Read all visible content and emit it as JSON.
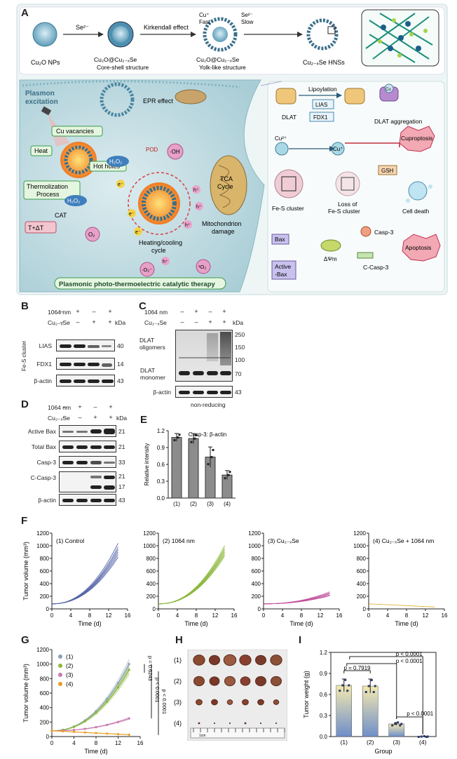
{
  "panels": [
    "A",
    "B",
    "C",
    "D",
    "E",
    "F",
    "G",
    "H",
    "I"
  ],
  "panelA": {
    "synth": {
      "s1": "Cu₂O NPs",
      "arrow1": "Se²⁻",
      "s2a": "Cu₂O@Cu₂₋ₓSe",
      "s2b": "Core-shell structure",
      "arrow2": "Kirkendall effect",
      "cuFast": "Cu⁺",
      "fast": "Fast",
      "seSlow": "Se²⁻",
      "slow": "Slow",
      "s3a": "Cu₂O@Cu₂₋ₓSe",
      "s3b": "Yolk-like structure",
      "s4": "Cu₂₋ₓSe HNSs"
    },
    "left": {
      "plasmon1": "Plasmon",
      "plasmon2": "excitation",
      "epr": "EPR effect",
      "cuvac": "Cu vacancies",
      "hotholes": "Hot holes",
      "heat": "Heat",
      "thermo1": "Thermolization",
      "thermo2": "Process",
      "h2o2a": "H₂O₂",
      "h2o2b": "H₂O₂",
      "oh": "·OH",
      "pod": "POD",
      "cat": "CAT",
      "o2": "O₂",
      "o2m": "·O₂⁻",
      "o2s": "¹O₂",
      "tca1": "TCA",
      "tca2": "Cycle",
      "mito1": "Mitochondrion",
      "mito2": "damage",
      "cycle1": "Heating/cooling",
      "cycle2": "cycle",
      "tdt": "T+ΔT",
      "banner": "Plasmonic photo-thermoelectric catalytic therapy",
      "e": "e⁻",
      "h": "h⁺"
    },
    "right": {
      "lipo": "Lipoylation",
      "dlat": "DLAT",
      "lias": "LIAS",
      "fdx1": "FDX1",
      "cu2": "Cu²⁺",
      "cu1": "Cu⁺",
      "gsh": "GSH",
      "agg": "DLAT aggregation",
      "cupro": "Cuproptosis",
      "fes": "Fe-S cluster",
      "loss1": "Loss of",
      "loss2": "Fe-S cluster",
      "death": "Cell death",
      "bax": "Bax",
      "abax1": "Active",
      "abax2": "-Bax",
      "dpsi": "ΔΨm",
      "casp3": "Casp-3",
      "ccasp3": "C-Casp-3",
      "apop": "Apoptosis",
      "cuLabel": "Cu"
    }
  },
  "blots": {
    "nm": "1064 nm",
    "cuse": "Cu₂₋ₓSe",
    "kda": "kDa",
    "plus": "+",
    "minus": "–",
    "treat1064": [
      "–",
      "+",
      "–",
      "+"
    ],
    "treatCuSe": [
      "–",
      "–",
      "+",
      "+"
    ],
    "B": {
      "rows": [
        "LIAS",
        "FDX1",
        "β-actin"
      ],
      "kda": [
        "40",
        "14",
        "43"
      ],
      "group": "Fe-S cluster"
    },
    "C": {
      "oligo": "DLAT oligomers",
      "mono1": "DLAT",
      "mono2": "monomer",
      "actin": "β-actin",
      "kda": [
        "250",
        "150",
        "100",
        "70",
        "43"
      ],
      "note": "non-reducing"
    },
    "D": {
      "rows": [
        "Active Bax",
        "Total Bax",
        "Casp-3",
        "C-Casp-3",
        "β-actin"
      ],
      "kda": [
        "21",
        "21",
        "33",
        "21",
        "17",
        "43"
      ]
    }
  },
  "chart_data": [
    {
      "panel": "E",
      "type": "bar",
      "title": "Casp-3: β-actin",
      "ylabel": "Relative intensity",
      "categories": [
        "(1)",
        "(2)",
        "(3)",
        "(4)"
      ],
      "values": [
        1.08,
        1.06,
        0.73,
        0.41
      ],
      "errors": [
        0.07,
        0.09,
        0.18,
        0.08
      ],
      "ylim": [
        0,
        1.2
      ],
      "yticks": [
        0.0,
        0.3,
        0.6,
        0.9,
        1.2
      ]
    },
    {
      "panel": "F",
      "type": "line",
      "xlabel": "Time (d)",
      "ylabel": "Tumor volume (mm³)",
      "xlim": [
        0,
        16
      ],
      "ylim": [
        0,
        1200
      ],
      "xticks": [
        0,
        4,
        8,
        12,
        16
      ],
      "yticks": [
        0,
        200,
        400,
        600,
        800,
        1000,
        1200
      ],
      "subplots": [
        {
          "title": "(1) Control",
          "end": [
            1040,
            980,
            940,
            900,
            860,
            820
          ],
          "start": 80,
          "color": "#5566a8"
        },
        {
          "title": "(2) 1064 nm",
          "end": [
            1000,
            960,
            930,
            900,
            870,
            840
          ],
          "start": 80,
          "color": "#8ab83a"
        },
        {
          "title": "(3) Cu₂₋ₓSe",
          "end": [
            270,
            250,
            240,
            220,
            210
          ],
          "start": 80,
          "color": "#c0509a"
        },
        {
          "title": "(4) Cu₂₋ₓSe + 1064 nm",
          "end": [
            30
          ],
          "start": 80,
          "color": "#e0b030"
        }
      ]
    },
    {
      "panel": "G",
      "type": "line",
      "xlabel": "Time (d)",
      "ylabel": "Tumor volume (mm³)",
      "xlim": [
        0,
        16
      ],
      "ylim": [
        0,
        1200
      ],
      "xticks": [
        0,
        4,
        8,
        12,
        16
      ],
      "yticks": [
        0,
        200,
        400,
        600,
        800,
        1000,
        1200
      ],
      "series": [
        {
          "name": "(1)",
          "end": 1000,
          "color": "#8aa0b8"
        },
        {
          "name": "(2)",
          "end": 920,
          "color": "#8ab83a"
        },
        {
          "name": "(3)",
          "end": 250,
          "color": "#c77ab0"
        },
        {
          "name": "(4)",
          "end": 25,
          "color": "#e8a020"
        }
      ],
      "pvalues": [
        "p = 0.6243",
        "p < 0.0001",
        "p < 0.0001"
      ]
    },
    {
      "panel": "I",
      "type": "bar",
      "xlabel": "Group",
      "ylabel": "Tumor weight (g)",
      "categories": [
        "(1)",
        "(2)",
        "(3)",
        "(4)"
      ],
      "values": [
        0.73,
        0.72,
        0.18,
        0.0
      ],
      "errors": [
        0.09,
        0.1,
        0.02,
        0.0
      ],
      "ylim": [
        0,
        1.2
      ],
      "yticks": [
        0.0,
        0.3,
        0.6,
        0.9,
        1.2
      ],
      "pvalues": [
        "p = 0.7919",
        "p < 0.0001",
        "p < 0.0001",
        "p < 0.0001"
      ]
    }
  ],
  "panelH": {
    "rows": [
      "(1)",
      "(2)",
      "(3)",
      "(4)"
    ],
    "ruler": "1cm"
  }
}
